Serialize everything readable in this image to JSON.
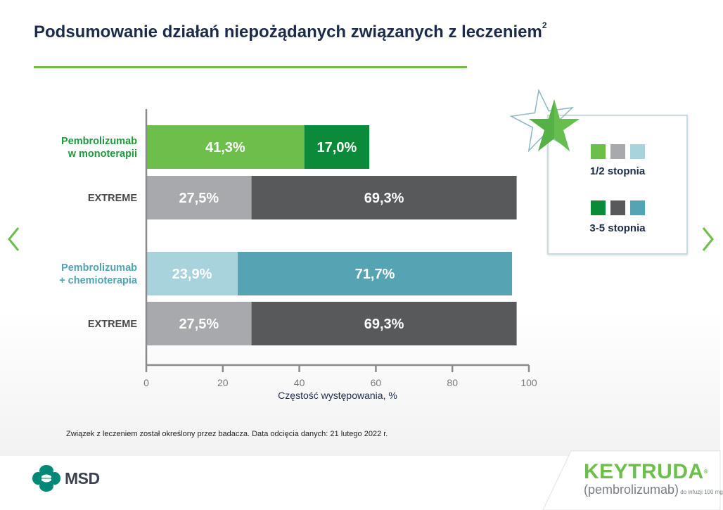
{
  "title": {
    "text": "Podsumowanie działań niepożądanych związanych z leczeniem",
    "superscript": "2"
  },
  "navigation": {
    "prev_icon": "chevron-left-icon",
    "next_icon": "chevron-right-icon"
  },
  "colors": {
    "brand_green": "#6cbf4b",
    "title_navy": "#1d2b4a"
  },
  "chart_data": {
    "type": "bar",
    "orientation": "horizontal",
    "stacked": true,
    "xlabel": "Częstość występowania, %",
    "xlim": [
      0,
      100
    ],
    "xticks": [
      0,
      20,
      40,
      60,
      80,
      100
    ],
    "grid": false,
    "legend_position": "right",
    "categories": [
      {
        "label": [
          "Pembrolizumab",
          "w monoterapii"
        ],
        "label_color": "#1e9a3c",
        "segments": [
          {
            "series": "1/2 stopnia",
            "value": 41.3,
            "text": "41,3%",
            "color": "#6cbf4b"
          },
          {
            "series": "3-5 stopnia",
            "value": 17.0,
            "text": "17,0%",
            "color": "#0b8a3a"
          }
        ]
      },
      {
        "label": [
          "EXTREME"
        ],
        "label_color": "#4a4a4a",
        "segments": [
          {
            "series": "1/2 stopnia",
            "value": 27.5,
            "text": "27,5%",
            "color": "#a7a9ac"
          },
          {
            "series": "3-5 stopnia",
            "value": 69.3,
            "text": "69,3%",
            "color": "#58595b"
          }
        ]
      },
      {
        "label": [
          "Pembrolizumab",
          "+ chemioterapia"
        ],
        "label_color": "#4fa3b5",
        "segments": [
          {
            "series": "1/2 stopnia",
            "value": 23.9,
            "text": "23,9%",
            "color": "#a9d3dc"
          },
          {
            "series": "3-5 stopnia",
            "value": 71.7,
            "text": "71,7%",
            "color": "#56a3b3"
          }
        ]
      },
      {
        "label": [
          "EXTREME"
        ],
        "label_color": "#4a4a4a",
        "segments": [
          {
            "series": "1/2 stopnia",
            "value": 27.5,
            "text": "27,5%",
            "color": "#a7a9ac"
          },
          {
            "series": "3-5 stopnia",
            "value": 69.3,
            "text": "69,3%",
            "color": "#58595b"
          }
        ]
      }
    ],
    "legend": [
      {
        "label": "1/2 stopnia",
        "swatches": [
          "#6cbf4b",
          "#a7a9ac",
          "#a9d3dc"
        ]
      },
      {
        "label": "3-5 stopnia",
        "swatches": [
          "#0b8a3a",
          "#58595b",
          "#56a3b3"
        ]
      }
    ]
  },
  "footnote": "Związek z leczeniem został określony przez badacza. Data odcięcia danych: 21 lutego 2022 r.",
  "footer": {
    "msd_logo_text": "MSD",
    "keytruda_name": "KEYTRUDA",
    "keytruda_reg": "®",
    "keytruda_generic": "(pembrolizumab)",
    "keytruda_form": "do infuzji 100 mg"
  }
}
